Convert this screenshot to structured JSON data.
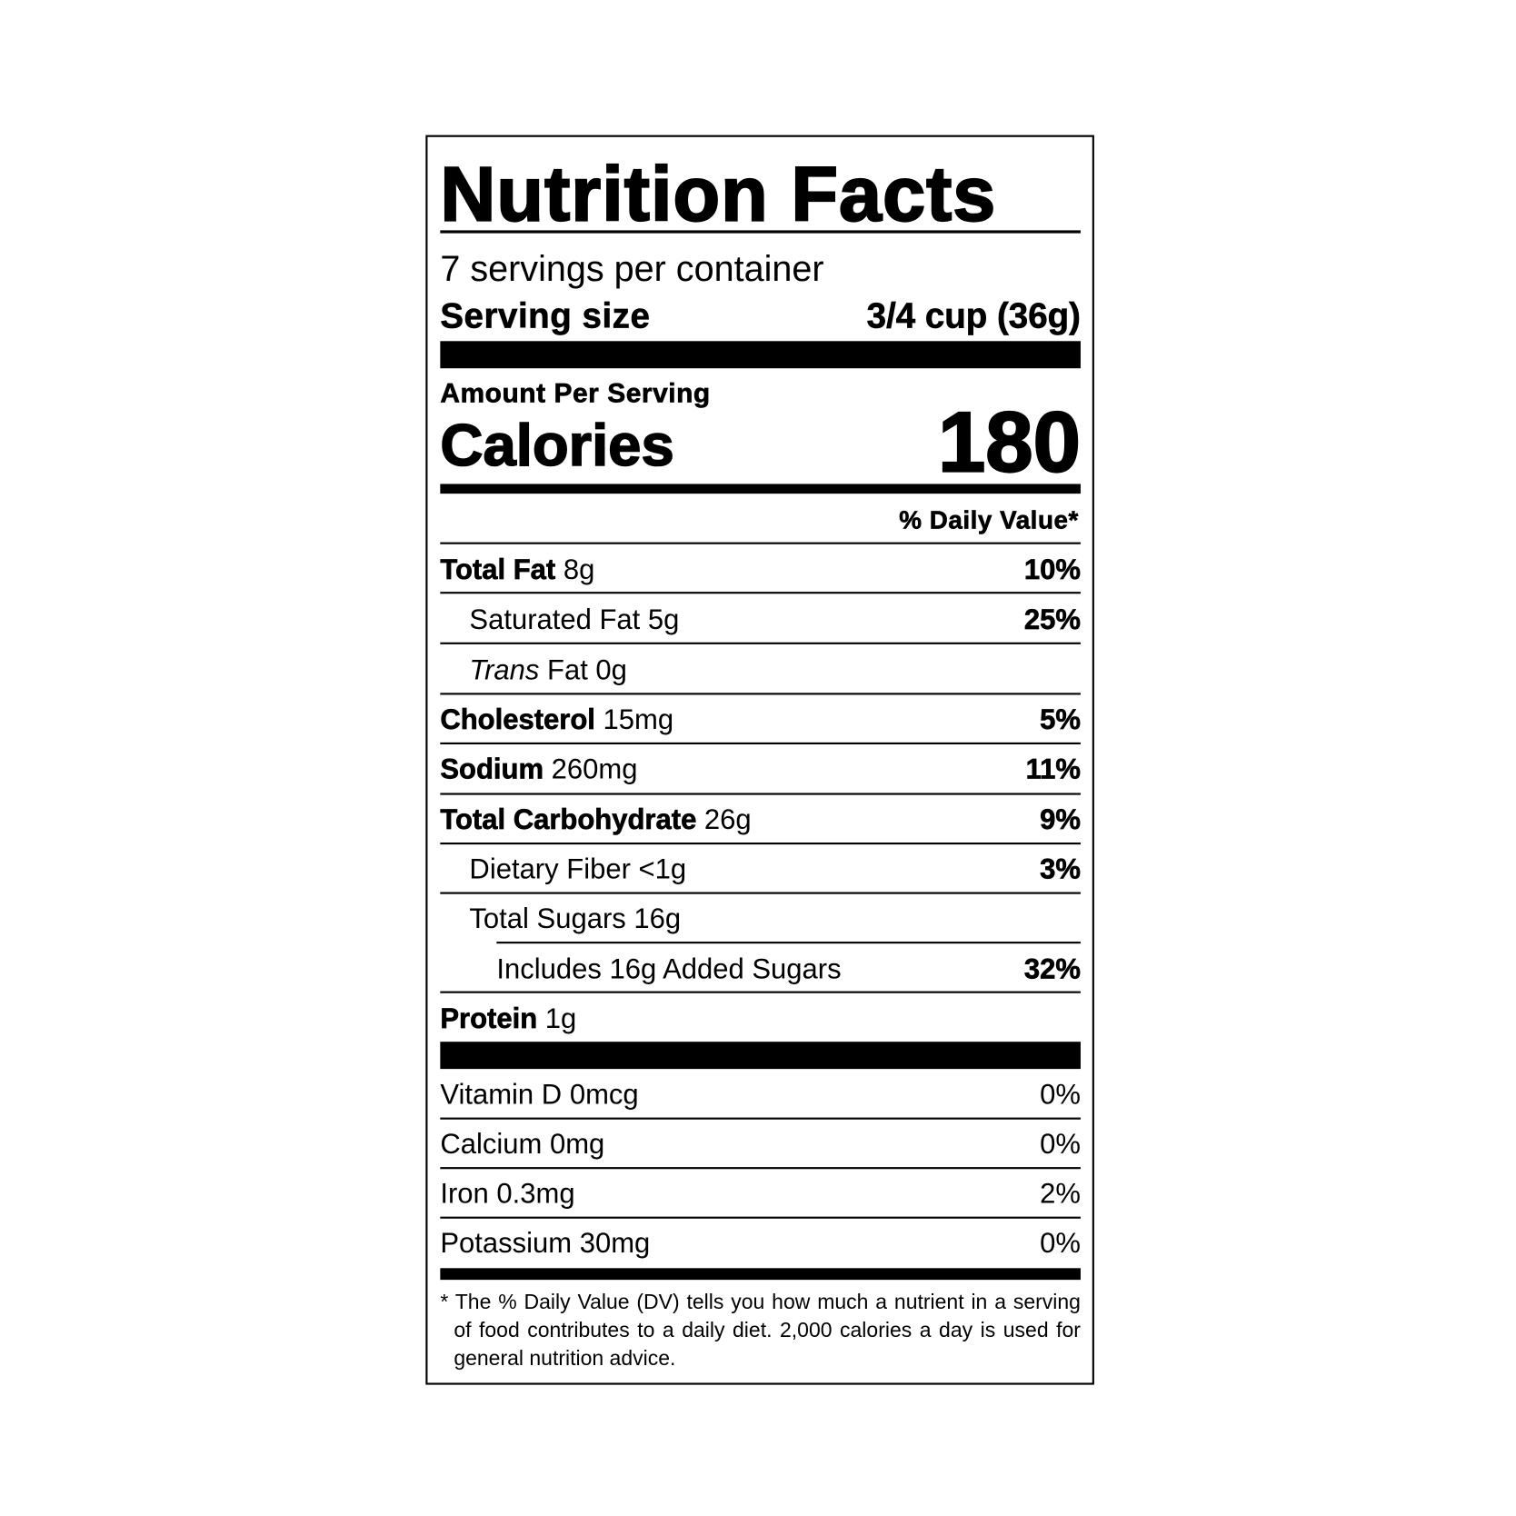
{
  "title": "Nutrition Facts",
  "servings_per_container": "7 servings per container",
  "serving_size_label": "Serving size",
  "serving_size_value": "3/4 cup (36g)",
  "amount_per_serving": "Amount Per Serving",
  "calories_label": "Calories",
  "calories_value": "180",
  "daily_value_header": "% Daily Value*",
  "nutrients": [
    {
      "name": "Total Fat",
      "amount": "8g",
      "dv": "10%"
    },
    {
      "name": "Saturated Fat",
      "amount": "5g",
      "dv": "25%"
    },
    {
      "name_italic": "Trans",
      "name": "Fat",
      "amount": "0g",
      "dv": ""
    },
    {
      "name": "Cholesterol",
      "amount": "15mg",
      "dv": "5%"
    },
    {
      "name": "Sodium",
      "amount": "260mg",
      "dv": "11%"
    },
    {
      "name": "Total Carbohydrate",
      "amount": "26g",
      "dv": "9%"
    },
    {
      "name": "Dietary Fiber",
      "amount": "<1g",
      "dv": "3%"
    },
    {
      "name": "Total Sugars",
      "amount": "16g",
      "dv": ""
    },
    {
      "name": "Includes 16g Added Sugars",
      "amount": "",
      "dv": "32%"
    },
    {
      "name": "Protein",
      "amount": "1g",
      "dv": ""
    }
  ],
  "vitamins": [
    {
      "name": "Vitamin D",
      "amount": "0mcg",
      "dv": "0%"
    },
    {
      "name": "Calcium",
      "amount": "0mg",
      "dv": "0%"
    },
    {
      "name": "Iron",
      "amount": "0.3mg",
      "dv": "2%"
    },
    {
      "name": "Potassium",
      "amount": "30mg",
      "dv": "0%"
    }
  ],
  "footnote": "* The % Daily Value (DV) tells you how much a nutrient in a serving of food contributes to a daily diet. 2,000 calories a day is used for general nutrition advice."
}
